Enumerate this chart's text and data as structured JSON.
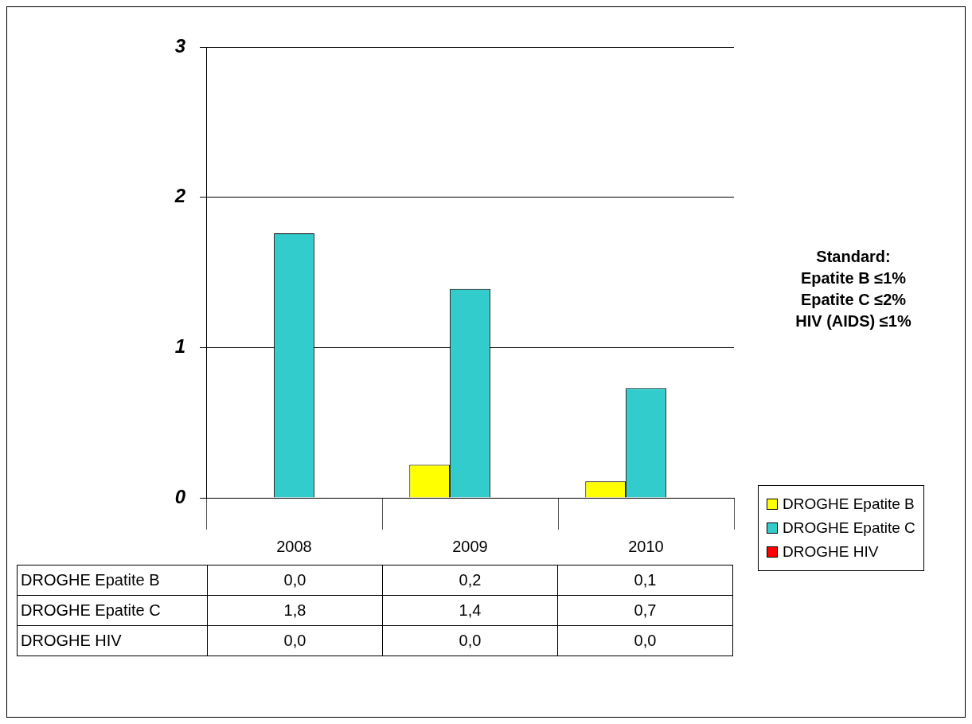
{
  "chart_data": {
    "type": "bar",
    "categories": [
      "2008",
      "2009",
      "2010"
    ],
    "series": [
      {
        "name": "DROGHE Epatite B",
        "color": "#ffff00",
        "values": [
          0,
          0.22,
          0.11
        ],
        "value_labels": [
          "0,0",
          "0,2",
          "0,1"
        ]
      },
      {
        "name": "DROGHE Epatite C",
        "color": "#33cccc",
        "values": [
          1.76,
          1.39,
          0.73
        ],
        "value_labels": [
          "1,8",
          "1,4",
          "0,7"
        ]
      },
      {
        "name": "DROGHE HIV",
        "color": "#ff0000",
        "values": [
          0,
          0,
          0
        ],
        "value_labels": [
          "0,0",
          "0,0",
          "0,0"
        ]
      }
    ],
    "ylim": [
      0,
      3
    ],
    "yticks": [
      0,
      1,
      2,
      3
    ],
    "grid": "y",
    "legend": "right",
    "annotations": [
      "Standard:",
      "Epatite B ≤1%",
      "Epatite C ≤2%",
      "HIV (AIDS) ≤1%"
    ]
  }
}
